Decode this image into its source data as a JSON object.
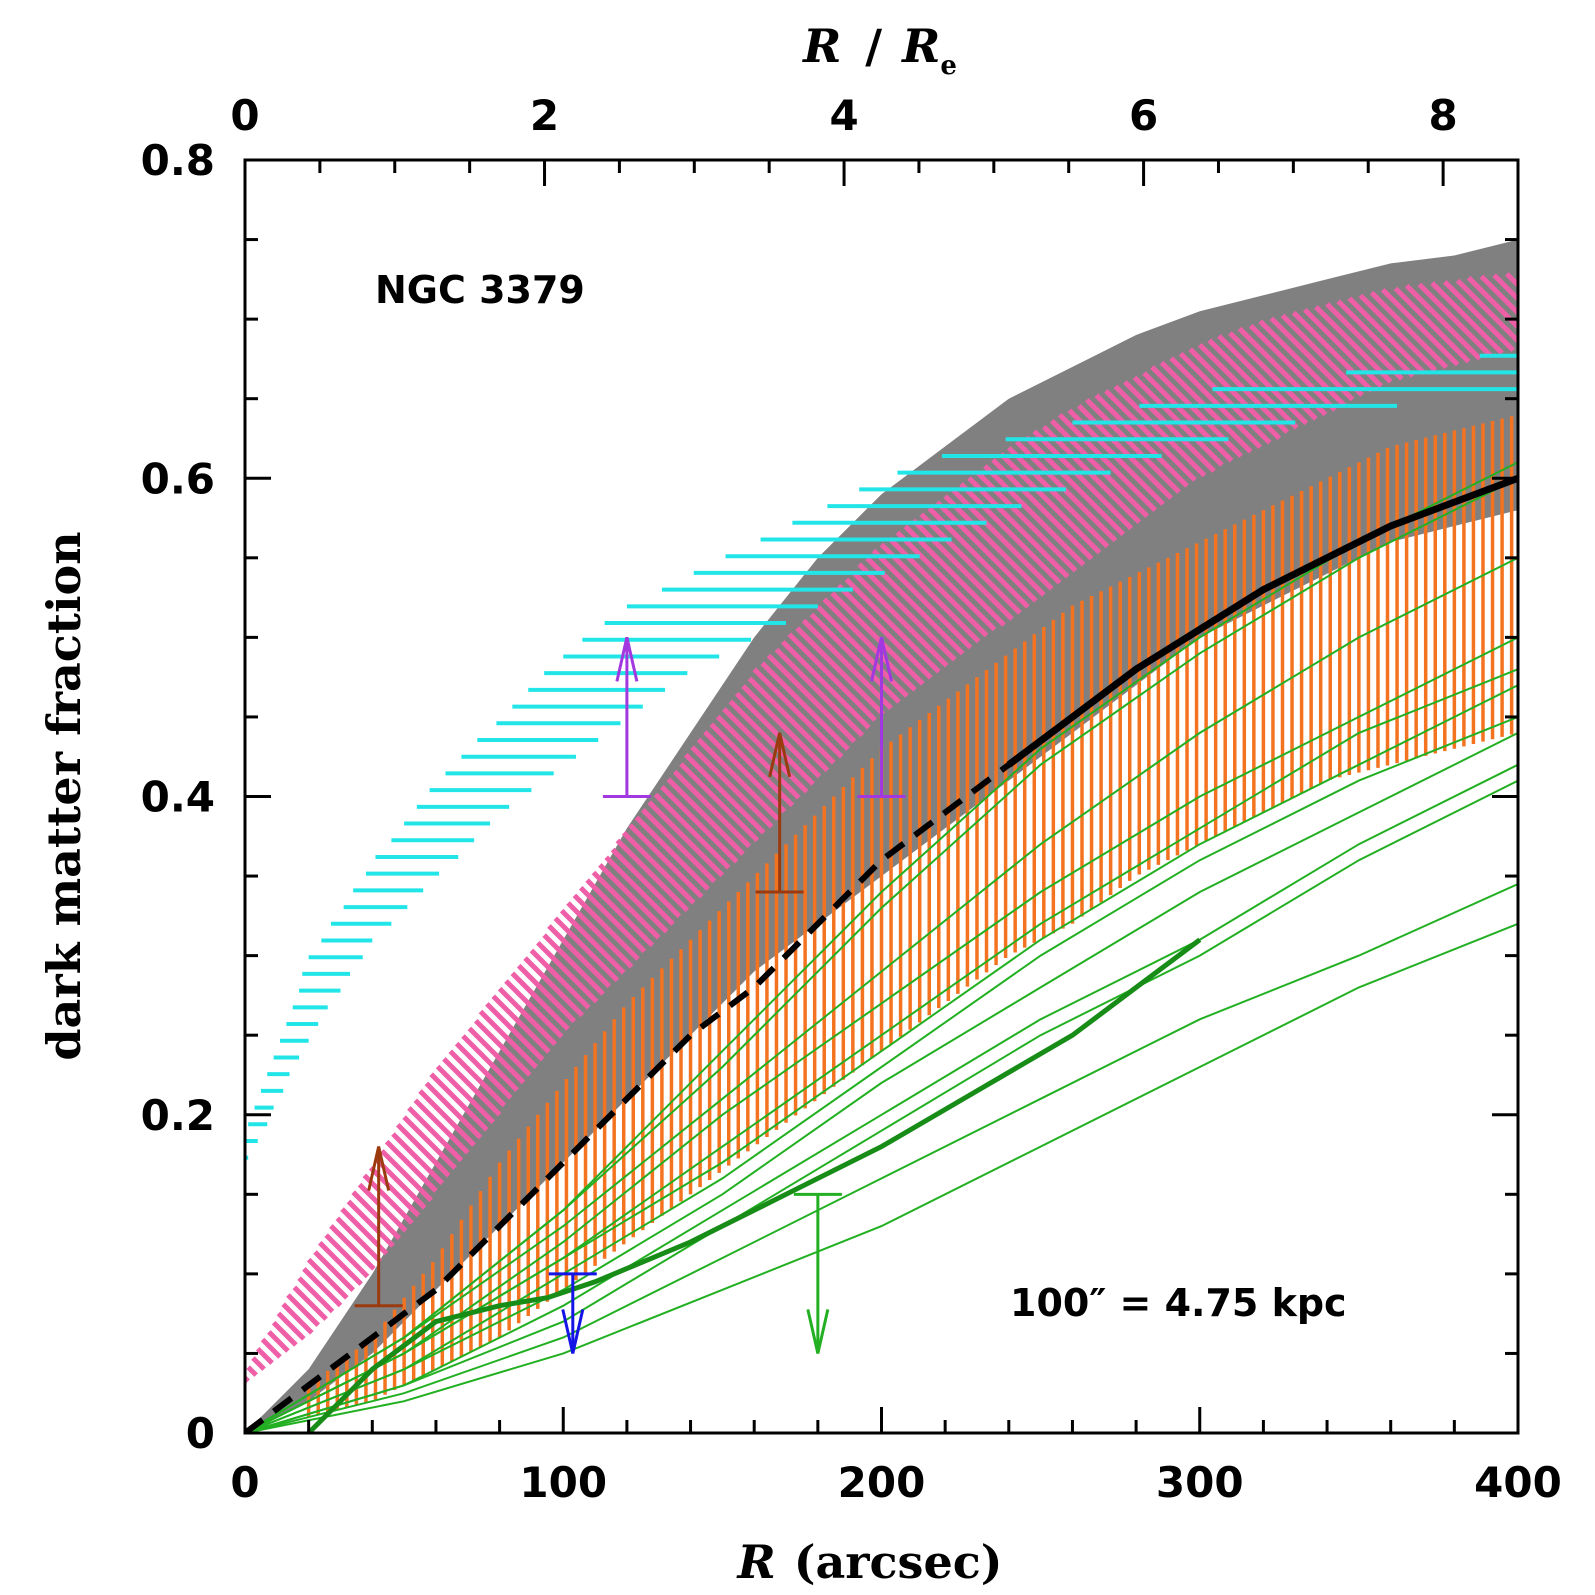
{
  "chart_data": {
    "type": "line",
    "annotation_galaxy": "NGC 3379",
    "annotation_scale": "100″ = 4.75 kpc",
    "xlabel_prefix": "R",
    "xlabel_unit": "(arcsec)",
    "ylabel": "dark matter fraction",
    "top_xlabel_num": "R",
    "top_xlabel_den": "R",
    "top_xlabel_sub": "e",
    "xlim": [
      0,
      400
    ],
    "ylim": [
      0,
      0.8
    ],
    "top_xlim": [
      0,
      8.5
    ],
    "x_ticks": [
      "0",
      "100",
      "200",
      "300",
      "400"
    ],
    "y_ticks": [
      "0",
      "0.2",
      "0.4",
      "0.6",
      "0.8"
    ],
    "top_ticks": [
      "0",
      "2",
      "4",
      "6",
      "8"
    ],
    "colors": {
      "gray": "#808080",
      "pink": "#ee5fa8",
      "cyan": "#22e5e8",
      "orange": "#f47320",
      "green": "#22b022",
      "dark_green": "#178c17",
      "brown": "#9b3a0e",
      "purple": "#a238e0",
      "blue": "#1414e6"
    },
    "bands": [
      {
        "name": "gray",
        "style": "solid",
        "x": [
          0,
          20,
          40,
          60,
          80,
          100,
          120,
          140,
          160,
          180,
          200,
          220,
          240,
          260,
          280,
          300,
          320,
          340,
          360,
          380,
          400
        ],
        "low": [
          0,
          0.02,
          0.05,
          0.09,
          0.13,
          0.17,
          0.21,
          0.25,
          0.29,
          0.32,
          0.35,
          0.38,
          0.41,
          0.44,
          0.47,
          0.5,
          0.52,
          0.54,
          0.56,
          0.57,
          0.58
        ],
        "high": [
          0,
          0.04,
          0.1,
          0.17,
          0.24,
          0.31,
          0.38,
          0.44,
          0.5,
          0.55,
          0.59,
          0.62,
          0.65,
          0.67,
          0.69,
          0.705,
          0.715,
          0.725,
          0.735,
          0.74,
          0.75
        ]
      },
      {
        "name": "pink",
        "style": "hatch-diag",
        "x": [
          0,
          20,
          40,
          60,
          80,
          100,
          120,
          140,
          160,
          180,
          200,
          220,
          240,
          260,
          280,
          300,
          320,
          340,
          360,
          380,
          400
        ],
        "low": [
          0.03,
          0.06,
          0.1,
          0.15,
          0.2,
          0.25,
          0.29,
          0.33,
          0.37,
          0.41,
          0.45,
          0.48,
          0.51,
          0.54,
          0.57,
          0.6,
          0.62,
          0.64,
          0.66,
          0.67,
          0.68
        ],
        "high": [
          0.04,
          0.11,
          0.17,
          0.23,
          0.28,
          0.33,
          0.38,
          0.43,
          0.48,
          0.52,
          0.56,
          0.59,
          0.62,
          0.645,
          0.665,
          0.685,
          0.7,
          0.71,
          0.72,
          0.725,
          0.73
        ]
      },
      {
        "name": "cyan",
        "style": "hatch-horiz",
        "x": [
          0,
          20,
          40,
          60,
          80,
          100,
          120,
          140,
          160,
          180,
          200,
          220,
          240,
          260,
          280,
          300,
          320,
          340,
          360,
          380,
          400
        ],
        "low": [
          0.17,
          0.25,
          0.31,
          0.35,
          0.39,
          0.42,
          0.45,
          0.48,
          0.5,
          0.52,
          0.54,
          0.56,
          0.58,
          0.595,
          0.61,
          0.62,
          0.63,
          0.64,
          0.645,
          0.65,
          0.65
        ],
        "high": [
          0.19,
          0.3,
          0.36,
          0.41,
          0.45,
          0.49,
          0.52,
          0.54,
          0.56,
          0.58,
          0.6,
          0.615,
          0.625,
          0.635,
          0.645,
          0.655,
          0.66,
          0.665,
          0.67,
          0.675,
          0.68
        ]
      },
      {
        "name": "orange",
        "style": "hatch-vert",
        "x": [
          20,
          40,
          60,
          80,
          100,
          120,
          140,
          160,
          180,
          200,
          220,
          240,
          260,
          280,
          300,
          320,
          340,
          360,
          380,
          400
        ],
        "low": [
          0.01,
          0.02,
          0.04,
          0.06,
          0.09,
          0.12,
          0.15,
          0.18,
          0.21,
          0.24,
          0.27,
          0.3,
          0.32,
          0.35,
          0.37,
          0.39,
          0.41,
          0.42,
          0.43,
          0.44
        ],
        "high": [
          0.03,
          0.06,
          0.11,
          0.17,
          0.22,
          0.27,
          0.31,
          0.35,
          0.39,
          0.43,
          0.46,
          0.49,
          0.52,
          0.54,
          0.56,
          0.58,
          0.6,
          0.62,
          0.63,
          0.64
        ]
      }
    ],
    "black_dashed": {
      "x": [
        0,
        20,
        40,
        60,
        80,
        100,
        120,
        140,
        160,
        180,
        200,
        220,
        240
      ],
      "y": [
        0,
        0.03,
        0.06,
        0.09,
        0.13,
        0.17,
        0.21,
        0.25,
        0.28,
        0.32,
        0.36,
        0.39,
        0.42
      ]
    },
    "black_solid": {
      "x": [
        240,
        260,
        280,
        300,
        320,
        340,
        360,
        380,
        400
      ],
      "y": [
        0.42,
        0.45,
        0.48,
        0.505,
        0.53,
        0.55,
        0.57,
        0.585,
        0.6
      ]
    },
    "green_curves": [
      {
        "x": [
          0,
          50,
          100,
          150,
          200,
          250,
          300,
          350,
          400
        ],
        "y": [
          0,
          0.06,
          0.14,
          0.24,
          0.34,
          0.43,
          0.5,
          0.56,
          0.61
        ]
      },
      {
        "x": [
          0,
          50,
          100,
          150,
          200,
          250,
          300,
          350,
          400
        ],
        "y": [
          0,
          0.06,
          0.14,
          0.23,
          0.33,
          0.42,
          0.49,
          0.55,
          0.6
        ]
      },
      {
        "x": [
          0,
          50,
          100,
          150,
          200,
          250,
          300,
          350,
          400
        ],
        "y": [
          0,
          0.06,
          0.13,
          0.21,
          0.29,
          0.37,
          0.44,
          0.5,
          0.55
        ]
      },
      {
        "x": [
          0,
          50,
          100,
          150,
          200,
          250,
          300,
          350,
          400
        ],
        "y": [
          0,
          0.05,
          0.12,
          0.2,
          0.27,
          0.34,
          0.4,
          0.45,
          0.5
        ]
      },
      {
        "x": [
          0,
          50,
          100,
          150,
          200,
          250,
          300,
          350,
          400
        ],
        "y": [
          0,
          0.05,
          0.11,
          0.18,
          0.25,
          0.32,
          0.38,
          0.44,
          0.48
        ]
      },
      {
        "x": [
          0,
          50,
          100,
          150,
          200,
          250,
          300,
          350,
          400
        ],
        "y": [
          0,
          0.05,
          0.11,
          0.17,
          0.24,
          0.31,
          0.37,
          0.42,
          0.47
        ]
      },
      {
        "x": [
          0,
          50,
          100,
          150,
          200,
          250,
          300,
          350,
          400
        ],
        "y": [
          0,
          0.04,
          0.1,
          0.16,
          0.23,
          0.3,
          0.36,
          0.41,
          0.45
        ]
      },
      {
        "x": [
          0,
          50,
          100,
          150,
          200,
          250,
          300,
          350,
          400
        ],
        "y": [
          0,
          0.04,
          0.09,
          0.15,
          0.22,
          0.28,
          0.34,
          0.39,
          0.44
        ]
      },
      {
        "x": [
          0,
          50,
          100,
          150,
          200,
          250,
          300,
          350,
          400
        ],
        "y": [
          0,
          0.03,
          0.08,
          0.14,
          0.2,
          0.26,
          0.31,
          0.37,
          0.42
        ]
      },
      {
        "x": [
          0,
          50,
          100,
          150,
          200,
          250,
          300,
          350,
          400
        ],
        "y": [
          0,
          0.03,
          0.07,
          0.13,
          0.19,
          0.25,
          0.3,
          0.36,
          0.41
        ]
      },
      {
        "x": [
          0,
          50,
          100,
          150,
          200,
          250,
          300,
          350,
          400
        ],
        "y": [
          0,
          0.025,
          0.06,
          0.11,
          0.16,
          0.21,
          0.26,
          0.3,
          0.345
        ]
      },
      {
        "x": [
          0,
          50,
          100,
          150,
          200,
          250,
          300,
          350,
          400
        ],
        "y": [
          0,
          0.02,
          0.05,
          0.09,
          0.13,
          0.18,
          0.23,
          0.28,
          0.32
        ]
      }
    ],
    "dark_green_curve": {
      "x": [
        20,
        40,
        60,
        80,
        95,
        110,
        140,
        170,
        200,
        230,
        260,
        300
      ],
      "y": [
        0,
        0.04,
        0.07,
        0.08,
        0.085,
        0.095,
        0.12,
        0.15,
        0.18,
        0.215,
        0.25,
        0.31
      ]
    },
    "limits": [
      {
        "x": 42,
        "y": 0.08,
        "dir": "up",
        "len": 0.1,
        "color": "brown"
      },
      {
        "x": 120,
        "y": 0.4,
        "dir": "up",
        "len": 0.1,
        "color": "purple"
      },
      {
        "x": 168,
        "y": 0.34,
        "dir": "up",
        "len": 0.1,
        "color": "brown"
      },
      {
        "x": 200,
        "y": 0.4,
        "dir": "up",
        "len": 0.1,
        "color": "purple"
      },
      {
        "x": 103,
        "y": 0.1,
        "dir": "down",
        "len": 0.05,
        "color": "blue"
      },
      {
        "x": 180,
        "y": 0.15,
        "dir": "down",
        "len": 0.1,
        "color": "green"
      }
    ]
  }
}
